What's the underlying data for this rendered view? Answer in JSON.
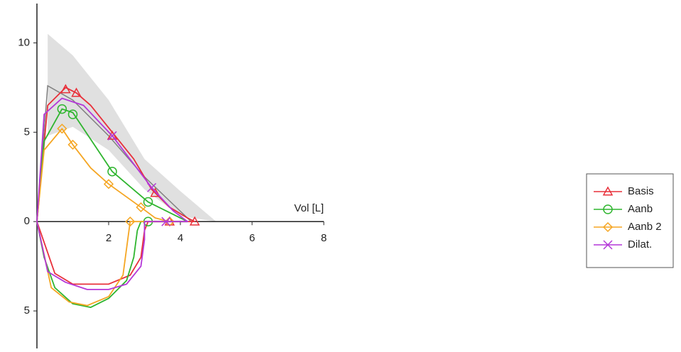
{
  "chart_data": {
    "type": "line",
    "x_label": "Vol [L]",
    "xlim": [
      0,
      8
    ],
    "xticks": [
      2,
      4,
      6,
      8
    ],
    "ylim": [
      -7.1,
      12.2
    ],
    "yticks": [
      10,
      5,
      0,
      {
        "value": -5,
        "label": "5"
      }
    ],
    "legend": "right",
    "reference": {
      "color": "#e0e0e0",
      "line_color": "#808080",
      "x": [
        0.3,
        1,
        2,
        3,
        4,
        5
      ],
      "upper": [
        10.5,
        9.3,
        6.8,
        3.5,
        1.7,
        0
      ],
      "lower": [
        4.8,
        5.3,
        4,
        1.8,
        0.3,
        0
      ],
      "line_x": [
        0,
        0.3,
        1,
        2,
        3,
        4.3
      ],
      "line_values": [
        0,
        7.6,
        6.8,
        4.8,
        2.5,
        0
      ]
    },
    "series": [
      {
        "name": "Basis",
        "color": "#e8303a",
        "marker": "triangle",
        "x": [
          0,
          0.3,
          0.8,
          1.1,
          1.5,
          2.1,
          2.7,
          3.2,
          3.7,
          4.2,
          4.4,
          3.1,
          3.0,
          2.9,
          2.6,
          2,
          1,
          0.5,
          0
        ],
        "values": [
          0,
          6.5,
          7.5,
          7.2,
          6.5,
          5,
          3.5,
          1.8,
          0.8,
          0.2,
          0,
          0,
          -0.5,
          -2,
          -3,
          -3.5,
          -3.5,
          -2.9,
          0
        ],
        "points_x": [
          0.8,
          1.1,
          2.1,
          3.3,
          3.7,
          4.4
        ],
        "points_values": [
          7.4,
          7.2,
          4.8,
          1.6,
          0,
          0
        ]
      },
      {
        "name": "Aanb",
        "color": "#2fb52f",
        "marker": "circle",
        "x": [
          0,
          0.2,
          0.7,
          1,
          1.5,
          2.1,
          3.1,
          4.2,
          2.9,
          2.8,
          2.7,
          2.5,
          2,
          1.5,
          1,
          0.5,
          0.2,
          0
        ],
        "values": [
          0,
          4.5,
          6.3,
          6.1,
          4.6,
          2.8,
          1.1,
          0,
          0,
          -0.5,
          -2,
          -3.3,
          -4.3,
          -4.8,
          -4.6,
          -3.7,
          -2,
          0
        ],
        "points_x": [
          0.7,
          1,
          2.1,
          3.1,
          3.1
        ],
        "points_values": [
          6.3,
          6,
          2.8,
          1.1,
          0
        ]
      },
      {
        "name": "Aanb 2",
        "color": "#f5a623",
        "marker": "diamond",
        "x": [
          0,
          0.2,
          0.7,
          1,
          1.5,
          2,
          2.9,
          3.3,
          3.7,
          2.6,
          2.5,
          2.4,
          2,
          1.4,
          0.9,
          0.4,
          0
        ],
        "values": [
          0,
          4,
          5.2,
          4.3,
          3,
          2.1,
          0.8,
          0.2,
          0,
          0,
          -1.5,
          -3,
          -4.2,
          -4.7,
          -4.5,
          -3.7,
          0
        ],
        "points_x": [
          0.7,
          1,
          2,
          2.9,
          2.6,
          3.7
        ],
        "points_values": [
          5.2,
          4.3,
          2.1,
          0.8,
          0,
          0
        ]
      },
      {
        "name": "Dilat.",
        "color": "#b437d8",
        "marker": "cross",
        "x": [
          0,
          0.2,
          0.7,
          1.3,
          2.1,
          3.2,
          3.8,
          4.2,
          3.0,
          3.0,
          2.9,
          2.5,
          2,
          1.4,
          0.8,
          0.3,
          0
        ],
        "values": [
          0,
          6,
          6.9,
          6.5,
          4.8,
          1.9,
          0.6,
          0,
          0,
          -1,
          -2.5,
          -3.5,
          -3.8,
          -3.8,
          -3.4,
          -2.8,
          0
        ],
        "points_x": [
          2.1,
          3.2,
          3.6
        ],
        "points_values": [
          4.8,
          1.9,
          0
        ]
      }
    ]
  }
}
